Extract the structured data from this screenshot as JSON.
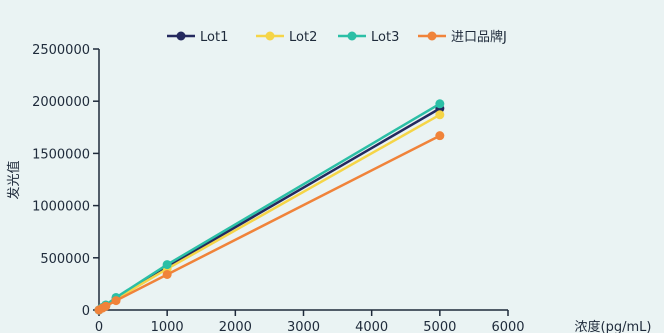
{
  "chart_data": {
    "type": "line",
    "title": "",
    "xlabel": "浓度(pg/mL)",
    "ylabel": "发光值",
    "xlim": [
      0,
      6000
    ],
    "ylim": [
      0,
      2500000
    ],
    "x_ticks": [
      0,
      1000,
      2000,
      3000,
      4000,
      5000,
      6000
    ],
    "y_ticks": [
      0,
      500000,
      1000000,
      1500000,
      2000000,
      2500000
    ],
    "grid": false,
    "legend_position": "top",
    "series": [
      {
        "name": "Lot1",
        "color": "#24295e",
        "x": [
          0,
          50,
          100,
          250,
          1000,
          5000
        ],
        "y": [
          0,
          22000,
          46000,
          110000,
          415000,
          1930000
        ]
      },
      {
        "name": "Lot2",
        "color": "#f5d547",
        "x": [
          0,
          50,
          100,
          250,
          1000,
          5000
        ],
        "y": [
          0,
          21000,
          44000,
          105000,
          395000,
          1870000
        ]
      },
      {
        "name": "Lot3",
        "color": "#2bbfa6",
        "x": [
          0,
          50,
          100,
          250,
          1000,
          5000
        ],
        "y": [
          0,
          24000,
          48000,
          120000,
          435000,
          1975000
        ]
      },
      {
        "name": "进口品牌J",
        "color": "#f0833a",
        "x": [
          0,
          50,
          100,
          250,
          1000,
          5000
        ],
        "y": [
          0,
          18000,
          36000,
          90000,
          340000,
          1670000
        ]
      }
    ]
  }
}
